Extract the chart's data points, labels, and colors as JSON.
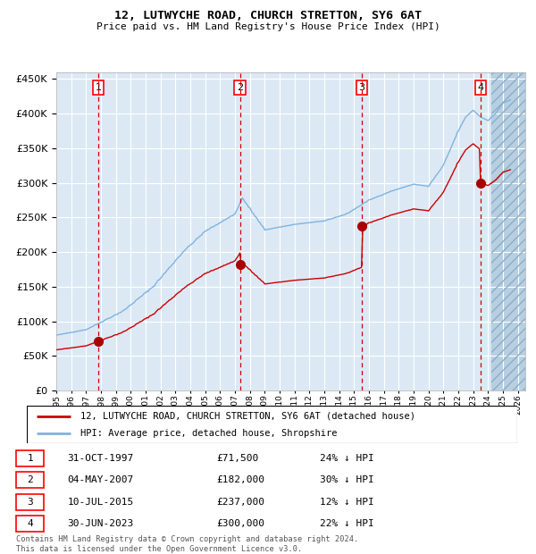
{
  "title": "12, LUTWYCHE ROAD, CHURCH STRETTON, SY6 6AT",
  "subtitle": "Price paid vs. HM Land Registry's House Price Index (HPI)",
  "property_label": "12, LUTWYCHE ROAD, CHURCH STRETTON, SY6 6AT (detached house)",
  "hpi_label": "HPI: Average price, detached house, Shropshire",
  "footer": "Contains HM Land Registry data © Crown copyright and database right 2024.\nThis data is licensed under the Open Government Licence v3.0.",
  "sales": [
    {
      "num": 1,
      "date": "31-OCT-1997",
      "price": 71500,
      "pct": "24%",
      "x_year": 1997.83
    },
    {
      "num": 2,
      "date": "04-MAY-2007",
      "price": 182000,
      "pct": "30%",
      "x_year": 2007.34
    },
    {
      "num": 3,
      "date": "10-JUL-2015",
      "price": 237000,
      "pct": "12%",
      "x_year": 2015.53
    },
    {
      "num": 4,
      "date": "30-JUN-2023",
      "price": 300000,
      "pct": "22%",
      "x_year": 2023.5
    }
  ],
  "ylim": [
    0,
    460000
  ],
  "xlim_start": 1995.0,
  "xlim_end": 2026.5,
  "bg_color": "#dce9f5",
  "grid_color": "#ffffff",
  "hpi_color": "#7fb3e0",
  "property_color": "#cc0000",
  "sale_marker_color": "#aa0000",
  "dashed_line_color": "#cc0000",
  "hpi_anchors": [
    [
      1995.0,
      80000
    ],
    [
      1997.0,
      88000
    ],
    [
      1999.5,
      115000
    ],
    [
      2001.5,
      150000
    ],
    [
      2003.5,
      200000
    ],
    [
      2005.0,
      230000
    ],
    [
      2007.0,
      255000
    ],
    [
      2007.5,
      278000
    ],
    [
      2009.0,
      232000
    ],
    [
      2011.0,
      240000
    ],
    [
      2013.0,
      245000
    ],
    [
      2014.5,
      255000
    ],
    [
      2016.0,
      275000
    ],
    [
      2017.5,
      288000
    ],
    [
      2019.0,
      298000
    ],
    [
      2020.0,
      295000
    ],
    [
      2021.0,
      325000
    ],
    [
      2022.0,
      375000
    ],
    [
      2022.5,
      395000
    ],
    [
      2023.0,
      405000
    ],
    [
      2023.5,
      395000
    ],
    [
      2024.0,
      390000
    ],
    [
      2024.5,
      400000
    ],
    [
      2025.0,
      415000
    ],
    [
      2025.5,
      420000
    ]
  ],
  "future_start": 2024.25
}
